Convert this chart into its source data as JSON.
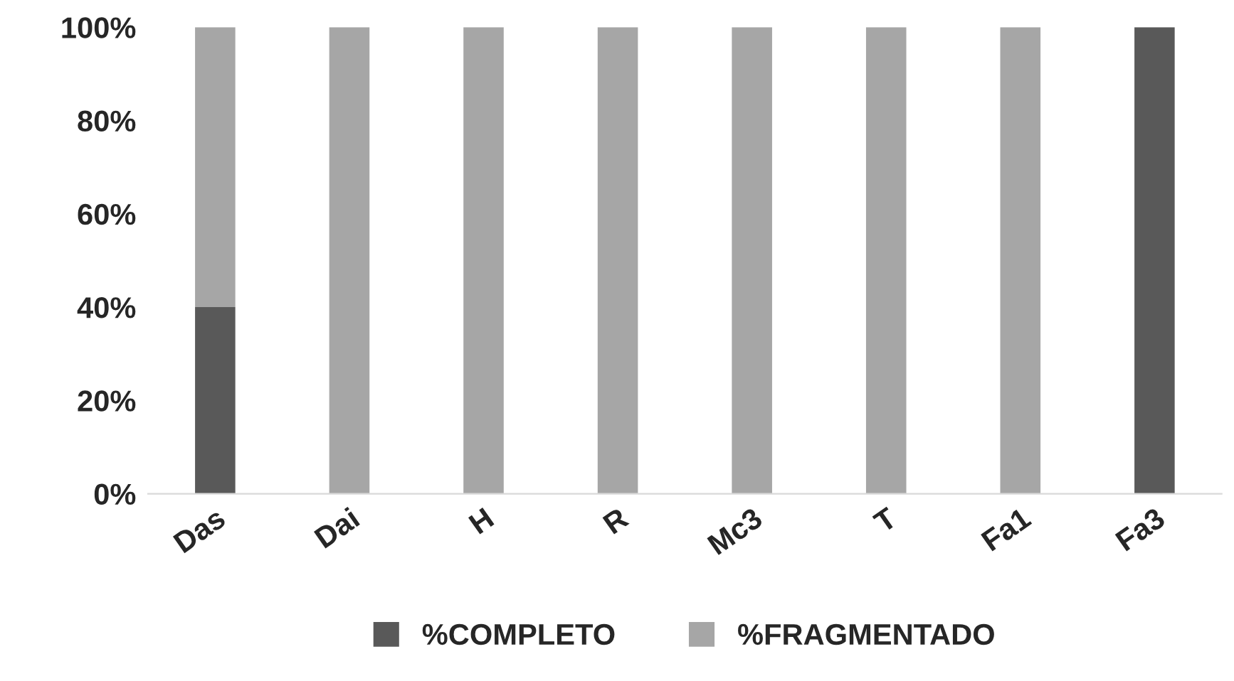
{
  "chart_data": {
    "type": "bar",
    "stacked": true,
    "categories": [
      "Das",
      "Dai",
      "H",
      "R",
      "Mc3",
      "T",
      "Fa1",
      "Fa3"
    ],
    "series": [
      {
        "name": "%COMPLETO",
        "color": "#595959",
        "values": [
          40,
          0,
          0,
          0,
          0,
          0,
          0,
          100
        ]
      },
      {
        "name": "%FRAGMENTADO",
        "color": "#a6a6a6",
        "values": [
          60,
          100,
          100,
          100,
          100,
          100,
          100,
          0
        ]
      }
    ],
    "ylim": [
      0,
      100
    ],
    "yticks": [
      {
        "value": 0,
        "label": "0%"
      },
      {
        "value": 20,
        "label": "20%"
      },
      {
        "value": 40,
        "label": "40%"
      },
      {
        "value": 60,
        "label": "60%"
      },
      {
        "value": 80,
        "label": "80%"
      },
      {
        "value": 100,
        "label": "100%"
      }
    ],
    "grid": false,
    "legend": "bottom"
  }
}
